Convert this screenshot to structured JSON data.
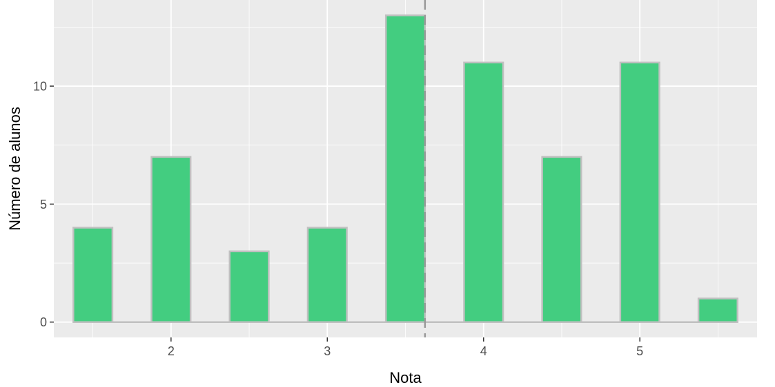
{
  "chart_data": {
    "type": "bar",
    "xlabel": "Nota",
    "ylabel": "Número de alunos",
    "x": [
      1.5,
      2.0,
      2.5,
      3.0,
      3.5,
      4.0,
      4.5,
      5.0,
      5.5
    ],
    "values": [
      4,
      7,
      3,
      4,
      13,
      11,
      7,
      11,
      1
    ],
    "bin_width": 0.5,
    "bar_width": 0.25,
    "xlim": [
      1.25,
      5.75
    ],
    "ylim": [
      -0.65,
      13.65
    ],
    "xticks": [
      2,
      3,
      4,
      5
    ],
    "xtick_labels": [
      "2",
      "3",
      "4",
      "5"
    ],
    "yticks": [
      0,
      5,
      10
    ],
    "ytick_labels": [
      "0",
      "5",
      "10"
    ],
    "reference_line": {
      "x": 3.625,
      "style": "dashed",
      "color": "#999999"
    },
    "bar_fill": "#43cd80",
    "bar_outline": "#c0c0c0",
    "panel_background": "#ebebeb",
    "grid": true
  }
}
